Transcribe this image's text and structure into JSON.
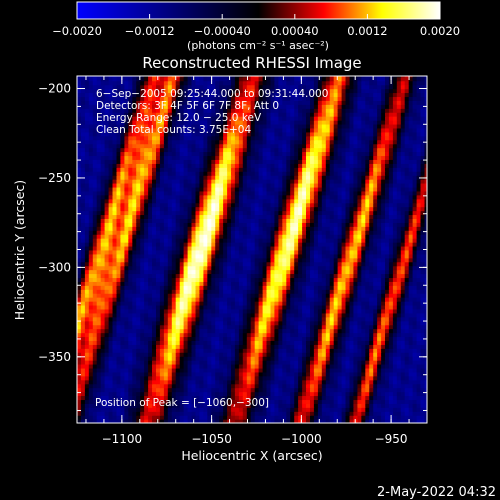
{
  "colorbar": {
    "ticks": [
      "−0.0020",
      "−0.0012",
      "−0.00040",
      "0.00040",
      "0.0012",
      "0.0020"
    ],
    "tick_values": [
      -0.002,
      -0.0012,
      -0.0004,
      0.0004,
      0.0012,
      0.002
    ],
    "range": [
      -0.002,
      0.002
    ],
    "unit_label": "(photons cm⁻² s⁻¹ asec⁻²)"
  },
  "footer_date": "2-May-2022 04:32",
  "chart_data": {
    "type": "heatmap",
    "title": "Reconstructed RHESSI Image",
    "xlabel": "Heliocentric X (arcsec)",
    "ylabel": "Heliocentric Y (arcsec)",
    "xlim": [
      -1125,
      -930
    ],
    "ylim": [
      -387,
      -193
    ],
    "x_ticks": [
      -1100,
      -1050,
      -1000,
      -950
    ],
    "x_tick_labels": [
      "−1100",
      "−1050",
      "−1000",
      "−950"
    ],
    "y_ticks": [
      -200,
      -250,
      -300,
      -350
    ],
    "y_tick_labels": [
      "−200",
      "−250",
      "−300",
      "−350"
    ],
    "annotations": [
      "6−Sep−2005 09:25:44.000 to 09:31:44.000",
      "Detectors: 3F 4F 5F 6F 7F 8F, Att 0",
      "Energy Range: 12.0 − 25.0 keV",
      "Clean     Total counts: 3.75E+04"
    ],
    "peak_label": "Position of Peak = [−1060,−300]",
    "peak": [
      -1060,
      -300
    ],
    "colormap_stops": [
      "#0000ff",
      "#000000",
      "#ff0000",
      "#ffff00",
      "#ffffff"
    ],
    "stripes": [
      {
        "x0": -1116,
        "slope": 0.3,
        "halfwidth": 4.5,
        "amp": 0.0011,
        "y_center": -300,
        "y_sigma": 100
      },
      {
        "x0": -1104,
        "slope": 0.3,
        "halfwidth": 5,
        "amp": 0.0012,
        "y_center": -260,
        "y_sigma": 90
      },
      {
        "x0": -1060,
        "slope": 0.3,
        "halfwidth": 7,
        "amp": 0.002,
        "y_center": -290,
        "y_sigma": 55
      },
      {
        "x0": -1012,
        "slope": 0.3,
        "halfwidth": 6.5,
        "amp": 0.0018,
        "y_center": -275,
        "y_sigma": 65
      },
      {
        "x0": -975,
        "slope": 0.3,
        "halfwidth": 5,
        "amp": 0.0013,
        "y_center": -300,
        "y_sigma": 80
      },
      {
        "x0": -945,
        "slope": 0.3,
        "halfwidth": 4,
        "amp": 0.001,
        "y_center": -330,
        "y_sigma": 80
      }
    ],
    "background": -0.0011
  }
}
